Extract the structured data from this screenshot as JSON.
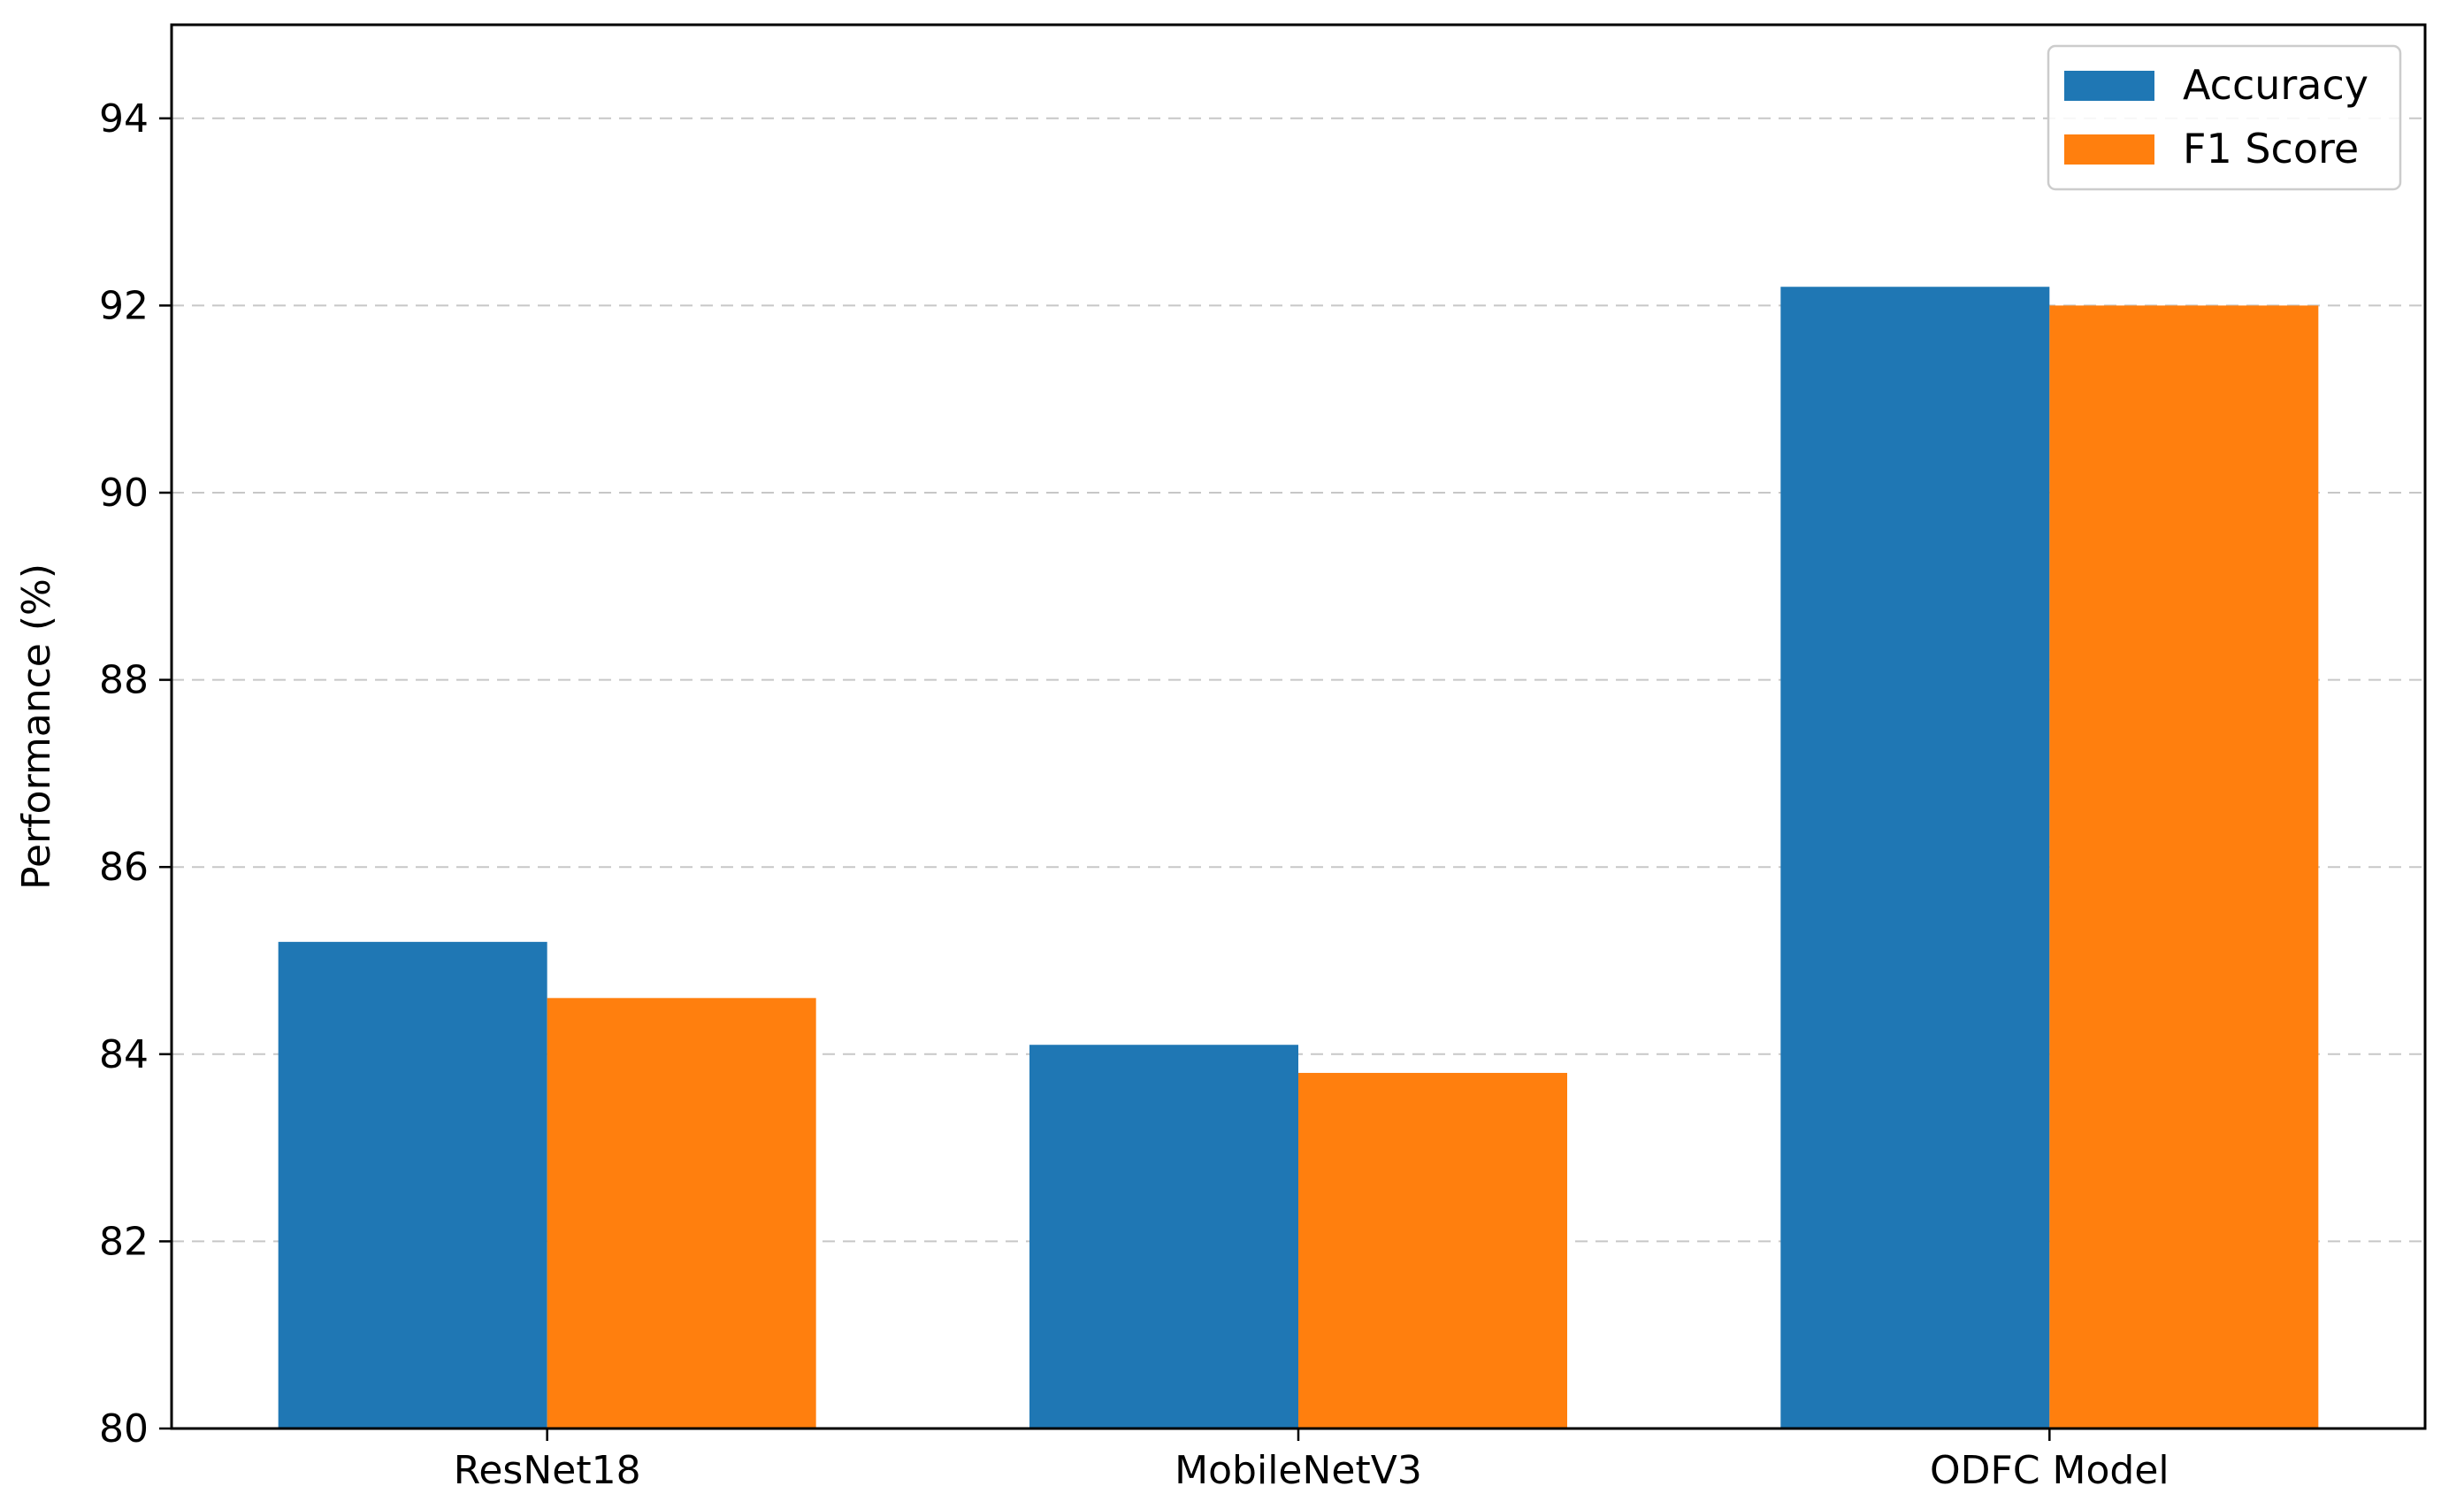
{
  "chart_data": {
    "type": "bar",
    "categories": [
      "ResNet18",
      "MobileNetV3",
      "ODFC Model"
    ],
    "series": [
      {
        "name": "Accuracy",
        "values": [
          85.2,
          84.1,
          92.2
        ],
        "color": "#1f77b4"
      },
      {
        "name": "F1 Score",
        "values": [
          84.6,
          83.8,
          92.0
        ],
        "color": "#ff7f0e"
      }
    ],
    "title": "",
    "xlabel": "",
    "ylabel": "Performance (%)",
    "ylim": [
      80,
      95
    ],
    "yticks": [
      80,
      82,
      84,
      86,
      88,
      90,
      92,
      94
    ],
    "grid": "horizontal dashed",
    "legend": "top-right"
  }
}
